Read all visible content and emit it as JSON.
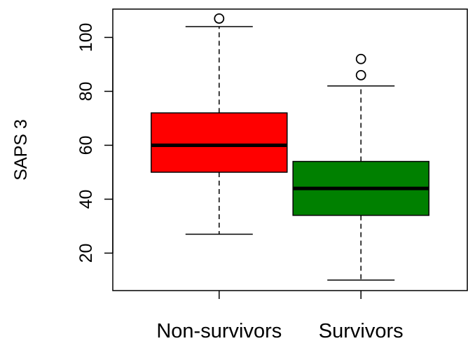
{
  "chart_data": {
    "type": "boxplot",
    "ylabel": "SAPS 3",
    "xlabel": "",
    "title": "",
    "ylim": [
      6.1,
      110.5
    ],
    "yticks": [
      20,
      40,
      60,
      80,
      100
    ],
    "grid": false,
    "categories": [
      "Non-survivors",
      "Survivors"
    ],
    "boxes": [
      {
        "category": "Non-survivors",
        "whisker_low": 27,
        "q1": 50,
        "median": 60,
        "q3": 72,
        "whisker_high": 104,
        "outliers": [
          107
        ],
        "color": "#ff0000"
      },
      {
        "category": "Survivors",
        "whisker_low": 10,
        "q1": 34,
        "median": 44,
        "q3": 54,
        "whisker_high": 82,
        "outliers": [
          86,
          92
        ],
        "color": "#008000"
      }
    ]
  }
}
